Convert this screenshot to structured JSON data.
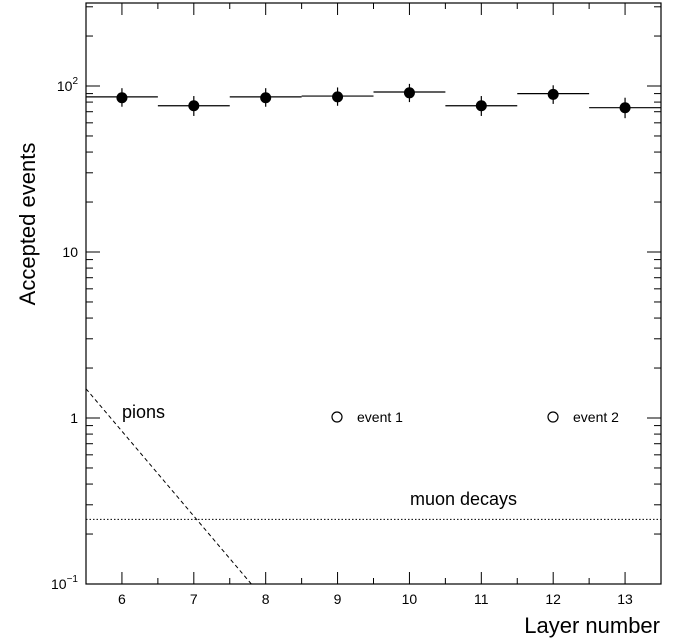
{
  "chart_data": {
    "type": "scatter",
    "xlabel": "Layer number",
    "ylabel": "Accepted events",
    "xlim": [
      5.5,
      13.5
    ],
    "ylim": [
      0.1,
      300
    ],
    "yscale": "log",
    "grid": false,
    "x_ticks": [
      6,
      7,
      8,
      9,
      10,
      11,
      12,
      13
    ],
    "x_tick_labels": [
      "6",
      "7",
      "8",
      "9",
      "10",
      "11",
      "12",
      "13"
    ],
    "y_ticks": [
      0.1,
      1,
      10,
      100
    ],
    "y_tick_labels": [
      {
        "base": "10",
        "exp": "−1"
      },
      {
        "base": "1",
        "exp": ""
      },
      {
        "base": "10",
        "exp": ""
      },
      {
        "base": "10",
        "exp": "2"
      }
    ],
    "data": {
      "x": [
        6,
        7,
        8,
        9,
        10,
        11,
        12,
        13
      ],
      "y": [
        85,
        76,
        85,
        86,
        91,
        76,
        89,
        74
      ],
      "y_err_low": [
        10,
        10,
        10,
        10,
        11,
        10,
        11,
        10
      ],
      "y_err_high": [
        12,
        11,
        12,
        12,
        12,
        11,
        12,
        11
      ],
      "hist": [
        86,
        76,
        86,
        87,
        92,
        76,
        90,
        74
      ]
    },
    "curves": {
      "pions_label": "pions",
      "pions": {
        "x": [
          5.5,
          7.8
        ],
        "y": [
          1.5,
          0.1
        ]
      },
      "muon_label": "muon decays",
      "muon": {
        "y": 0.245
      }
    },
    "legend": [
      {
        "label": "event 1",
        "marker": "open-circle"
      },
      {
        "label": "event 2",
        "marker": "open-circle"
      }
    ],
    "colors": {
      "marker": "#000000",
      "line": "#000000"
    }
  }
}
